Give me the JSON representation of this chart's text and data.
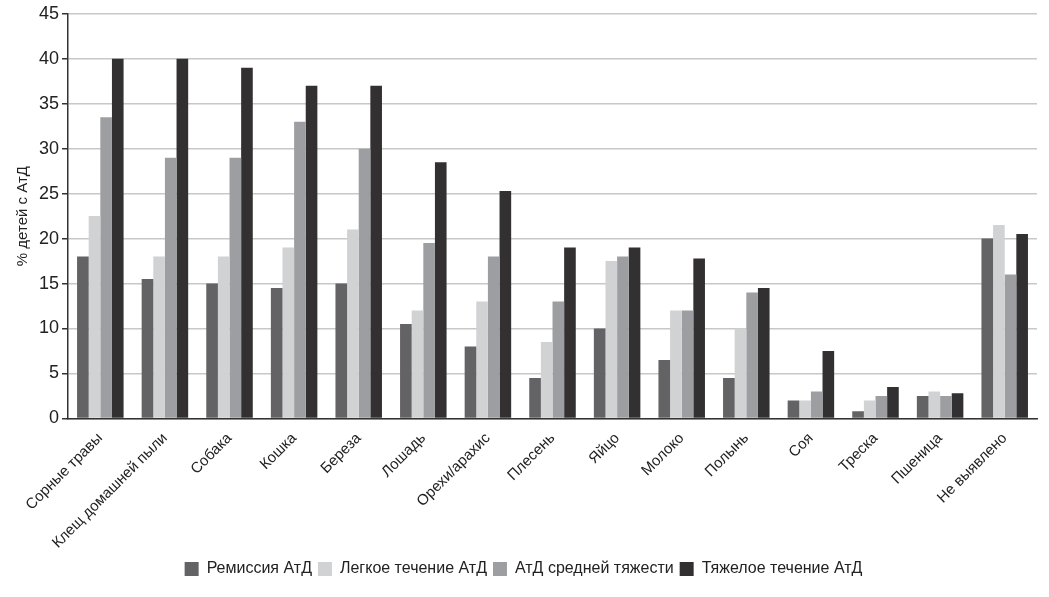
{
  "chart_data": {
    "type": "bar",
    "ylabel": "% детей с АтД",
    "categories": [
      "Сорные травы",
      "Клещ домашней пыли",
      "Собака",
      "Кошка",
      "Береза",
      "Лошадь",
      "Орехи/арахис",
      "Плесень",
      "Яйцо",
      "Молоко",
      "Полынь",
      "Соя",
      "Треска",
      "Пшеница",
      "Не выявлено"
    ],
    "series": [
      {
        "name": "Ремиссия АтД",
        "color": "#636365",
        "values": [
          18,
          15.5,
          15,
          14.5,
          15,
          10.5,
          8,
          4.5,
          10,
          6.5,
          4.5,
          2,
          0.8,
          2.5,
          20
        ]
      },
      {
        "name": "Легкое течение АтД",
        "color": "#d1d2d4",
        "values": [
          22.5,
          18,
          18,
          19,
          21,
          12,
          13,
          8.5,
          17.5,
          12,
          10,
          2,
          2,
          3,
          21.5
        ]
      },
      {
        "name": "АтД средней тяжести",
        "color": "#9d9ea1",
        "values": [
          33.5,
          29,
          29,
          33,
          30,
          19.5,
          18,
          13,
          18,
          12,
          14,
          3,
          2.5,
          2.5,
          16
        ]
      },
      {
        "name": "Тяжелое течение АтД",
        "color": "#323031",
        "values": [
          40,
          40,
          39,
          37,
          37,
          28.5,
          25.3,
          19,
          19,
          17.8,
          14.5,
          7.5,
          3.5,
          2.8,
          20.5
        ]
      }
    ],
    "ylim": [
      0,
      45
    ],
    "yticks": [
      0,
      5,
      10,
      15,
      20,
      25,
      30,
      35,
      40,
      45
    ],
    "grid": "y",
    "legend": "bottom"
  }
}
